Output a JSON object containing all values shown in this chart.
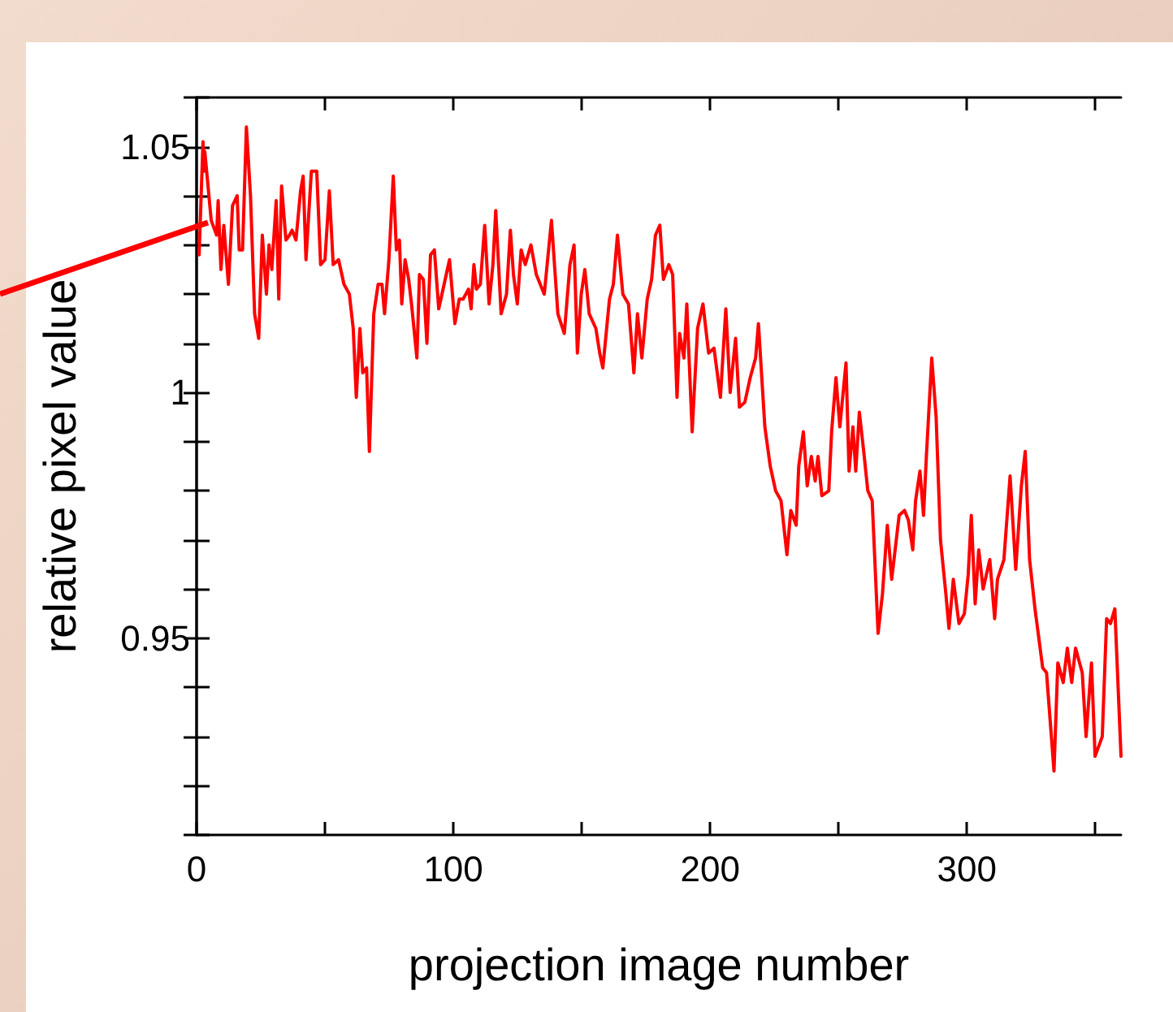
{
  "chart_data": {
    "type": "line",
    "xlabel": "projection image number",
    "ylabel": "relative pixel value",
    "xlim": [
      0,
      360
    ],
    "ylim": [
      0.91,
      1.06
    ],
    "xticks": [
      0,
      {
        "value": 50,
        "label": null
      },
      100,
      {
        "value": 150,
        "label": null
      },
      200,
      {
        "value": 250,
        "label": null
      },
      300,
      {
        "value": 350,
        "label": null
      }
    ],
    "yticks": [
      {
        "value": 0.91,
        "label": null
      },
      {
        "value": 0.92,
        "label": null
      },
      {
        "value": 0.93,
        "label": null
      },
      {
        "value": 0.94,
        "label": null
      },
      {
        "value": 0.95,
        "label": "0.95"
      },
      {
        "value": 0.96,
        "label": null
      },
      {
        "value": 0.97,
        "label": null
      },
      {
        "value": 0.98,
        "label": null
      },
      {
        "value": 0.99,
        "label": null
      },
      {
        "value": 1,
        "label": "1"
      },
      {
        "value": 1.01,
        "label": null
      },
      {
        "value": 1.02,
        "label": null
      },
      {
        "value": 1.03,
        "label": null
      },
      {
        "value": 1.04,
        "label": null
      },
      {
        "value": 1.05,
        "label": "1.05"
      },
      {
        "value": 1.06,
        "label": null
      }
    ],
    "grid": false,
    "marker": "none",
    "line_style": "solid",
    "series": [
      {
        "color": "#ff0000",
        "x": [
          1,
          2.5,
          3,
          3.2,
          5.7,
          7.8,
          8.4,
          9.5,
          10.6,
          12.4,
          14,
          15.8,
          16.6,
          17.9,
          19.4,
          21,
          22.6,
          24.2,
          25.6,
          27.2,
          28.2,
          29.3,
          31,
          32,
          33.1,
          34.8,
          36.2,
          37.2,
          38.7,
          40.5,
          41.5,
          42.6,
          44.7,
          46.8,
          48.3,
          50,
          51.7,
          53.2,
          55.3,
          57.4,
          59.5,
          61,
          62.2,
          63.6,
          64.7,
          66.2,
          67.3,
          69,
          70.7,
          72.2,
          73.2,
          74.9,
          76.6,
          77.8,
          79,
          79.9,
          81.2,
          82.6,
          83.7,
          85.8,
          86.8,
          88.3,
          89.7,
          91.1,
          92.6,
          94.3,
          96.4,
          98.5,
          100.6,
          102.3,
          103.8,
          105.9,
          106.9,
          108,
          109,
          110.5,
          112.2,
          113.9,
          115.4,
          116.5,
          118.6,
          120.7,
          122.2,
          123.4,
          124.9,
          126.4,
          128,
          130.2,
          132.3,
          135.4,
          138.2,
          140.7,
          143.2,
          145.4,
          147,
          148.3,
          149.8,
          151.2,
          152.9,
          155.5,
          157,
          158.2,
          160.8,
          162.3,
          163.9,
          166,
          168.2,
          170.3,
          171.7,
          173.4,
          175.5,
          177.2,
          178.7,
          180.4,
          181.8,
          183.9,
          185.4,
          187.1,
          188.1,
          189.8,
          190.9,
          193,
          195.1,
          197.2,
          199.4,
          201.5,
          204,
          206.1,
          207.8,
          209.9,
          211.4,
          213.5,
          215.6,
          217.7,
          218.8,
          221.3,
          223.4,
          225.5,
          227.6,
          229.9,
          231.4,
          233.5,
          234.5,
          236.3,
          237.8,
          239.4,
          240.9,
          242,
          243.5,
          246.2,
          247.3,
          249,
          250.5,
          252.9,
          254.1,
          255.6,
          256.7,
          258.1,
          259.8,
          261.4,
          263.1,
          265.4,
          267.1,
          269,
          270.7,
          273.6,
          275.7,
          277.2,
          278.9,
          280,
          281.7,
          283.1,
          284.2,
          286.3,
          288,
          289.7,
          291.8,
          293,
          294.7,
          296.9,
          299,
          300.5,
          301.7,
          303.2,
          304.6,
          306.3,
          308.9,
          310.8,
          311.9,
          314.4,
          316.8,
          319,
          321.2,
          322.7,
          324.4,
          326.5,
          329.5,
          331,
          333.9,
          335.4,
          337.5,
          339.1,
          340.8,
          342.3,
          344.9,
          346.4,
          348.5,
          349.9,
          352.7,
          354.4,
          355.9,
          357.6,
          360
        ],
        "values": [
          1.028,
          1.051,
          1.045,
          1.049,
          1.035,
          1.032,
          1.039,
          1.025,
          1.034,
          1.022,
          1.038,
          1.04,
          1.029,
          1.029,
          1.054,
          1.04,
          1.016,
          1.011,
          1.032,
          1.02,
          1.03,
          1.025,
          1.039,
          1.019,
          1.042,
          1.031,
          1.032,
          1.033,
          1.031,
          1.041,
          1.044,
          1.027,
          1.045,
          1.045,
          1.026,
          1.027,
          1.041,
          1.026,
          1.027,
          1.022,
          1.02,
          1.013,
          0.999,
          1.013,
          1.004,
          1.005,
          0.988,
          1.016,
          1.022,
          1.022,
          1.016,
          1.027,
          1.044,
          1.029,
          1.031,
          1.018,
          1.027,
          1.023,
          1.018,
          1.007,
          1.024,
          1.023,
          1.01,
          1.028,
          1.029,
          1.017,
          1.022,
          1.027,
          1.014,
          1.019,
          1.019,
          1.021,
          1.017,
          1.026,
          1.021,
          1.022,
          1.034,
          1.018,
          1.026,
          1.037,
          1.016,
          1.02,
          1.033,
          1.024,
          1.018,
          1.029,
          1.026,
          1.03,
          1.024,
          1.02,
          1.035,
          1.016,
          1.012,
          1.026,
          1.03,
          1.008,
          1.02,
          1.025,
          1.016,
          1.013,
          1.008,
          1.005,
          1.019,
          1.022,
          1.032,
          1.02,
          1.018,
          1.004,
          1.016,
          1.007,
          1.019,
          1.023,
          1.032,
          1.034,
          1.023,
          1.026,
          1.024,
          0.999,
          1.012,
          1.007,
          1.018,
          0.992,
          1.013,
          1.018,
          1.008,
          1.009,
          0.999,
          1.017,
          1.0,
          1.011,
          0.997,
          0.998,
          1.003,
          1.007,
          1.014,
          0.993,
          0.985,
          0.98,
          0.978,
          0.967,
          0.976,
          0.973,
          0.985,
          0.992,
          0.981,
          0.987,
          0.982,
          0.987,
          0.979,
          0.98,
          0.992,
          1.003,
          0.993,
          1.006,
          0.984,
          0.993,
          0.984,
          0.996,
          0.988,
          0.98,
          0.978,
          0.951,
          0.959,
          0.973,
          0.962,
          0.975,
          0.976,
          0.974,
          0.968,
          0.978,
          0.984,
          0.975,
          0.987,
          1.007,
          0.995,
          0.97,
          0.959,
          0.952,
          0.962,
          0.953,
          0.955,
          0.963,
          0.975,
          0.957,
          0.968,
          0.96,
          0.966,
          0.954,
          0.962,
          0.966,
          0.983,
          0.964,
          0.981,
          0.988,
          0.966,
          0.956,
          0.944,
          0.943,
          0.923,
          0.945,
          0.941,
          0.948,
          0.941,
          0.948,
          0.943,
          0.93,
          0.945,
          0.926,
          0.93,
          0.954,
          0.953,
          0.956,
          0.926
        ]
      }
    ]
  }
}
